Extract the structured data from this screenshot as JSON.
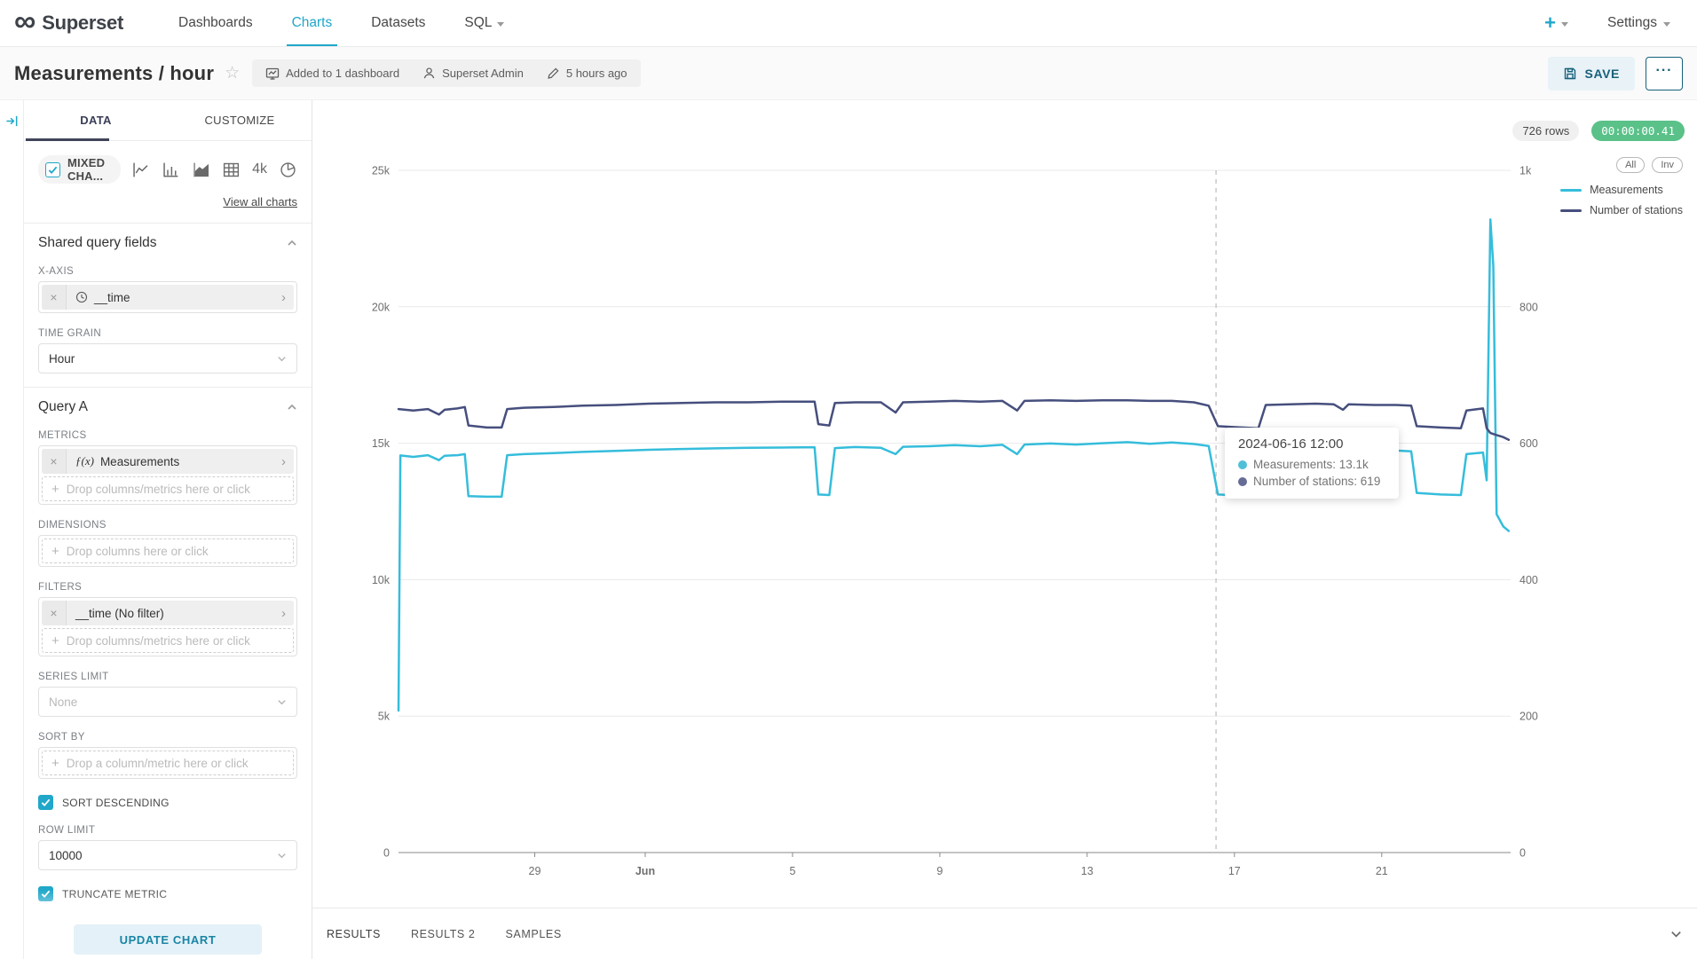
{
  "nav": {
    "brand": "Superset",
    "items": [
      {
        "label": "Dashboards"
      },
      {
        "label": "Charts"
      },
      {
        "label": "Datasets"
      },
      {
        "label": "SQL"
      }
    ],
    "plus_label": "+",
    "settings_label": "Settings"
  },
  "header": {
    "title": "Measurements / hour",
    "added_to": "Added to 1 dashboard",
    "owner": "Superset Admin",
    "modified": "5 hours ago",
    "save_label": "SAVE",
    "more_label": "···"
  },
  "panel": {
    "tabs": {
      "data": "DATA",
      "customize": "CUSTOMIZE"
    },
    "viz": {
      "selected": "MIXED CHA...",
      "four_k": "4k",
      "view_all": "View all charts"
    },
    "shared": {
      "title": "Shared query fields",
      "x_axis_label": "X-AXIS",
      "x_axis_value": "__time",
      "time_grain_label": "TIME GRAIN",
      "time_grain_value": "Hour"
    },
    "query_a": {
      "title": "Query A",
      "metrics_label": "METRICS",
      "metric_fn": "ƒ(x)",
      "metric_name": "Measurements",
      "metrics_drop": "Drop columns/metrics here or click",
      "dimensions_label": "DIMENSIONS",
      "dimensions_drop": "Drop columns here or click",
      "filters_label": "FILTERS",
      "filter_value": "__time (No filter)",
      "filters_drop": "Drop columns/metrics here or click",
      "series_limit_label": "SERIES LIMIT",
      "series_limit_placeholder": "None",
      "sort_by_label": "SORT BY",
      "sort_by_drop": "Drop a column/metric here or click",
      "sort_descending_label": "SORT DESCENDING",
      "row_limit_label": "ROW LIMIT",
      "row_limit_value": "10000",
      "truncate_label": "TRUNCATE METRIC"
    },
    "update_button": "UPDATE CHART"
  },
  "chart": {
    "rows_badge": "726 rows",
    "timer_badge": "00:00:00.41",
    "legend_all": "All",
    "legend_inv": "Inv",
    "tooltip": {
      "title": "2024-06-16 12:00",
      "rows": [
        {
          "text": "Measurements: 13.1k",
          "color": "#4FC0D7"
        },
        {
          "text": "Number of stations: 619",
          "color": "#666C96"
        }
      ]
    }
  },
  "results": {
    "tabs": [
      "RESULTS",
      "RESULTS 2",
      "SAMPLES"
    ]
  },
  "colors": {
    "accent": "#20A7C9",
    "measurements_line": "#35BDDB",
    "stations_line": "#464F7D",
    "timer_badge_bg": "#5AC189"
  },
  "chart_data": {
    "type": "line",
    "title": "Measurements / hour",
    "grid": true,
    "legend_position": "top-right",
    "x_axis": {
      "unit": "days from 2024-05-25 (hourly data)",
      "t_max": 30.2,
      "ticks": [
        {
          "t": 3.7,
          "label": "29",
          "bold": false
        },
        {
          "t": 6.7,
          "label": "Jun",
          "bold": true
        },
        {
          "t": 10.7,
          "label": "5",
          "bold": false
        },
        {
          "t": 14.7,
          "label": "9",
          "bold": false
        },
        {
          "t": 18.7,
          "label": "13",
          "bold": false
        },
        {
          "t": 22.7,
          "label": "17",
          "bold": false
        },
        {
          "t": 26.7,
          "label": "21",
          "bold": false
        }
      ]
    },
    "y_left": {
      "min": 0,
      "max": 25000,
      "ticks": [
        {
          "v": 0,
          "label": "0"
        },
        {
          "v": 5000,
          "label": "5k"
        },
        {
          "v": 10000,
          "label": "10k"
        },
        {
          "v": 15000,
          "label": "15k"
        },
        {
          "v": 20000,
          "label": "20k"
        },
        {
          "v": 25000,
          "label": "25k"
        }
      ]
    },
    "y_right": {
      "min": 0,
      "max": 1000,
      "ticks": [
        {
          "v": 0,
          "label": "0"
        },
        {
          "v": 200,
          "label": "200"
        },
        {
          "v": 400,
          "label": "400"
        },
        {
          "v": 600,
          "label": "600"
        },
        {
          "v": 800,
          "label": "800"
        },
        {
          "v": 1000,
          "label": "1k"
        }
      ]
    },
    "crosshair_t": 22.2,
    "series": [
      {
        "name": "Measurements",
        "axis": "left",
        "color": "#35BDDB",
        "points": [
          [
            0.0,
            5200
          ],
          [
            0.05,
            14550
          ],
          [
            0.4,
            14500
          ],
          [
            0.8,
            14560
          ],
          [
            1.1,
            14380
          ],
          [
            1.25,
            14540
          ],
          [
            1.6,
            14560
          ],
          [
            1.8,
            14600
          ],
          [
            1.9,
            13060
          ],
          [
            2.4,
            13040
          ],
          [
            2.8,
            13040
          ],
          [
            2.95,
            14560
          ],
          [
            3.4,
            14600
          ],
          [
            4.2,
            14640
          ],
          [
            5.0,
            14680
          ],
          [
            5.9,
            14720
          ],
          [
            6.8,
            14760
          ],
          [
            7.7,
            14790
          ],
          [
            8.6,
            14810
          ],
          [
            9.5,
            14830
          ],
          [
            10.4,
            14840
          ],
          [
            11.0,
            14850
          ],
          [
            11.3,
            14850
          ],
          [
            11.4,
            13120
          ],
          [
            11.7,
            13100
          ],
          [
            11.85,
            14820
          ],
          [
            12.4,
            14860
          ],
          [
            13.1,
            14830
          ],
          [
            13.5,
            14600
          ],
          [
            13.7,
            14870
          ],
          [
            14.4,
            14890
          ],
          [
            15.1,
            14930
          ],
          [
            15.8,
            14890
          ],
          [
            16.4,
            14940
          ],
          [
            16.8,
            14600
          ],
          [
            17.0,
            14950
          ],
          [
            17.7,
            14990
          ],
          [
            18.4,
            14950
          ],
          [
            19.1,
            15000
          ],
          [
            19.8,
            15040
          ],
          [
            20.4,
            14980
          ],
          [
            21.0,
            15030
          ],
          [
            21.6,
            14970
          ],
          [
            22.0,
            14900
          ],
          [
            22.25,
            13120
          ],
          [
            22.9,
            13080
          ],
          [
            23.35,
            13060
          ],
          [
            23.55,
            14660
          ],
          [
            24.2,
            14720
          ],
          [
            24.9,
            14760
          ],
          [
            25.4,
            14700
          ],
          [
            25.65,
            14340
          ],
          [
            25.8,
            14730
          ],
          [
            26.5,
            14710
          ],
          [
            27.1,
            14730
          ],
          [
            27.5,
            14700
          ],
          [
            27.65,
            13180
          ],
          [
            28.3,
            13120
          ],
          [
            28.85,
            13100
          ],
          [
            29.0,
            14600
          ],
          [
            29.45,
            14660
          ],
          [
            29.55,
            13640
          ],
          [
            29.65,
            23200
          ],
          [
            29.73,
            21500
          ],
          [
            29.82,
            12400
          ],
          [
            30.0,
            11950
          ],
          [
            30.15,
            11780
          ]
        ]
      },
      {
        "name": "Number of stations",
        "axis": "right",
        "color": "#464F7D",
        "points": [
          [
            0.0,
            650
          ],
          [
            0.4,
            648
          ],
          [
            0.8,
            650
          ],
          [
            1.1,
            642
          ],
          [
            1.25,
            649
          ],
          [
            1.6,
            651
          ],
          [
            1.8,
            653
          ],
          [
            1.9,
            626
          ],
          [
            2.4,
            623
          ],
          [
            2.8,
            623
          ],
          [
            2.95,
            650
          ],
          [
            3.4,
            652
          ],
          [
            4.2,
            653
          ],
          [
            5.0,
            655
          ],
          [
            5.9,
            656
          ],
          [
            6.8,
            658
          ],
          [
            7.7,
            659
          ],
          [
            8.6,
            660
          ],
          [
            9.5,
            660
          ],
          [
            10.4,
            661
          ],
          [
            11.0,
            661
          ],
          [
            11.3,
            661
          ],
          [
            11.4,
            628
          ],
          [
            11.7,
            626
          ],
          [
            11.85,
            659
          ],
          [
            12.4,
            660
          ],
          [
            13.1,
            660
          ],
          [
            13.5,
            645
          ],
          [
            13.7,
            660
          ],
          [
            14.4,
            661
          ],
          [
            15.1,
            662
          ],
          [
            15.8,
            661
          ],
          [
            16.4,
            662
          ],
          [
            16.8,
            648
          ],
          [
            17.0,
            662
          ],
          [
            17.7,
            663
          ],
          [
            18.4,
            662
          ],
          [
            19.1,
            663
          ],
          [
            19.8,
            663
          ],
          [
            20.4,
            662
          ],
          [
            21.0,
            662
          ],
          [
            21.6,
            660
          ],
          [
            22.0,
            655
          ],
          [
            22.25,
            625
          ],
          [
            22.9,
            623
          ],
          [
            23.35,
            622
          ],
          [
            23.55,
            656
          ],
          [
            24.2,
            657
          ],
          [
            24.9,
            658
          ],
          [
            25.4,
            657
          ],
          [
            25.65,
            649
          ],
          [
            25.8,
            657
          ],
          [
            26.5,
            656
          ],
          [
            27.1,
            656
          ],
          [
            27.5,
            655
          ],
          [
            27.65,
            625
          ],
          [
            28.3,
            623
          ],
          [
            28.85,
            622
          ],
          [
            29.0,
            648
          ],
          [
            29.45,
            651
          ],
          [
            29.55,
            622
          ],
          [
            29.65,
            615
          ],
          [
            29.82,
            612
          ],
          [
            30.0,
            609
          ],
          [
            30.15,
            605
          ]
        ]
      }
    ]
  }
}
